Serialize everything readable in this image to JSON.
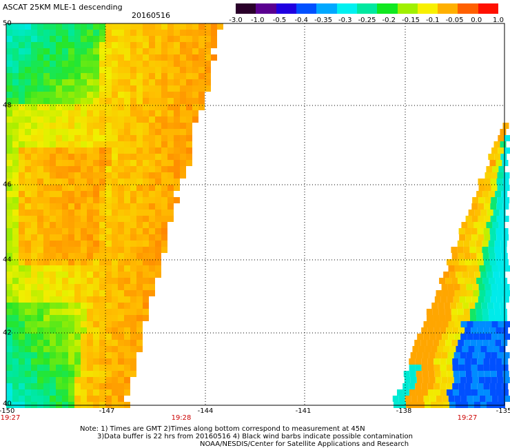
{
  "title": "ASCAT 25KM MLE-1 descending",
  "date": "20160516",
  "colorbar": {
    "labels": [
      "-3.0",
      "-1.0",
      "-0.5",
      "-0.4",
      "-0.35",
      "-0.3",
      "-0.25",
      "-0.2",
      "-0.15",
      "-0.1",
      "-0.05",
      "0.0",
      "1.0"
    ],
    "colors": [
      "#2a002a",
      "#5a0090",
      "#2000e0",
      "#0050ff",
      "#00a8ff",
      "#00f0f0",
      "#00e8a0",
      "#10e820",
      "#a0f000",
      "#f8f000",
      "#ffb000",
      "#ff6000",
      "#ff1000"
    ]
  },
  "map": {
    "lat_labels": [
      "50",
      "48",
      "46",
      "44",
      "42",
      "40"
    ],
    "lon_labels": [
      "-150",
      "-147",
      "-144",
      "-141",
      "-138",
      "-135"
    ],
    "time_labels": [
      "19:27",
      "19:28",
      "19:27"
    ]
  },
  "notes": {
    "line1": "Note: 1) Times are GMT 2)Times along bottom correspond to measurement at 45N",
    "line2": "3)Data buffer is 22 hrs from 20160516 4) Black wind barbs indicate possible contamination",
    "line3": "NOAA/NESDIS/Center for Satellite Applications and Research"
  }
}
